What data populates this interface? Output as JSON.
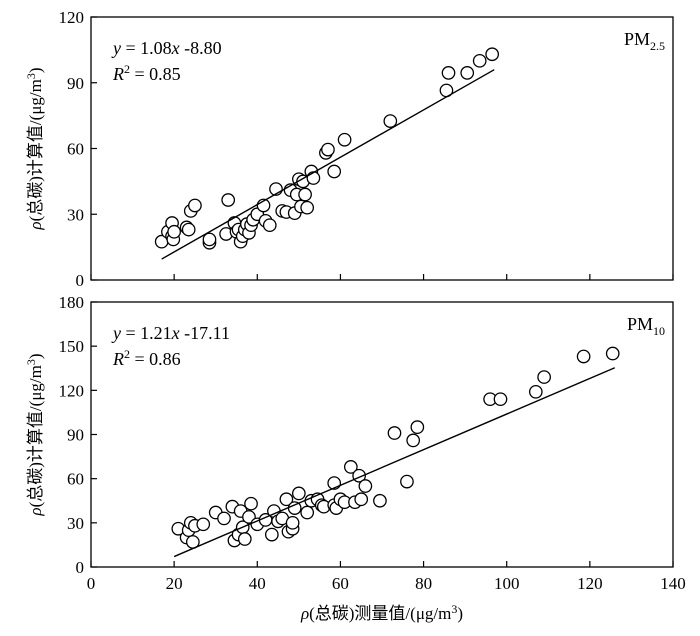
{
  "chart_data": [
    {
      "type": "scatter",
      "series_label": "PM",
      "series_label_sub": "2.5",
      "equation": {
        "y": "y",
        "eq": " = 1.08",
        "x": "x",
        "rest": " -8.80"
      },
      "r2": {
        "r": "R",
        "exp": "2",
        "rest": " = 0.85"
      },
      "fit": {
        "slope": 1.08,
        "intercept": -8.8,
        "x_range": [
          17,
          97
        ]
      },
      "xlim": [
        0,
        140
      ],
      "ylim": [
        0,
        120
      ],
      "yticks": [
        0,
        30,
        60,
        90,
        120
      ],
      "ylabel": {
        "rho": "ρ",
        "main": "(总碳)计算值/(μg/m",
        "sup": "3",
        "end": ")"
      },
      "points": [
        [
          17,
          17.5
        ],
        [
          18.5,
          22
        ],
        [
          19.5,
          26
        ],
        [
          19.5,
          20
        ],
        [
          19.8,
          18.5
        ],
        [
          20,
          22
        ],
        [
          23,
          24
        ],
        [
          23.5,
          23
        ],
        [
          24,
          31.5
        ],
        [
          25,
          34
        ],
        [
          28.5,
          17
        ],
        [
          28.5,
          18.5
        ],
        [
          32.5,
          21
        ],
        [
          33,
          36.5
        ],
        [
          34.5,
          26
        ],
        [
          35,
          22
        ],
        [
          35.5,
          23
        ],
        [
          36,
          17.5
        ],
        [
          36.5,
          20
        ],
        [
          37,
          23
        ],
        [
          37.5,
          25.5
        ],
        [
          38,
          21.5
        ],
        [
          38.5,
          25
        ],
        [
          39,
          27.5
        ],
        [
          40,
          30
        ],
        [
          41.5,
          34
        ],
        [
          42,
          27
        ],
        [
          43,
          25
        ],
        [
          44.5,
          41.5
        ],
        [
          46,
          31.5
        ],
        [
          47,
          31
        ],
        [
          48,
          41
        ],
        [
          49,
          30.5
        ],
        [
          49.5,
          39
        ],
        [
          50,
          46
        ],
        [
          50.5,
          33.5
        ],
        [
          51,
          45
        ],
        [
          51.5,
          39
        ],
        [
          52,
          33
        ],
        [
          53,
          49.5
        ],
        [
          53.5,
          46.5
        ],
        [
          56.5,
          58
        ],
        [
          57,
          59.5
        ],
        [
          58.5,
          49.5
        ],
        [
          61,
          64
        ],
        [
          72,
          72.5
        ],
        [
          85.5,
          86.5
        ],
        [
          86,
          94.5
        ],
        [
          90.5,
          94.5
        ],
        [
          93.5,
          100
        ],
        [
          96.5,
          103
        ]
      ]
    },
    {
      "type": "scatter",
      "series_label": "PM",
      "series_label_sub": "10",
      "equation": {
        "y": "y",
        "eq": " = 1.21",
        "x": "x",
        "rest": " -17.11"
      },
      "r2": {
        "r": "R",
        "exp": "2",
        "rest": " = 0.86"
      },
      "fit": {
        "slope": 1.21,
        "intercept": -17.11,
        "x_range": [
          20,
          126
        ]
      },
      "xlim": [
        0,
        140
      ],
      "ylim": [
        0,
        180
      ],
      "xticks": [
        0,
        20,
        40,
        60,
        80,
        100,
        120,
        140
      ],
      "yticks": [
        0,
        30,
        60,
        90,
        120,
        150,
        180
      ],
      "xlabel": {
        "rho": "ρ",
        "main": "(总碳)测量值/(μg/m",
        "sup": "3",
        "end": ")"
      },
      "ylabel": {
        "rho": "ρ",
        "main": "(总碳)计算值/(μg/m",
        "sup": "3",
        "end": ")"
      },
      "points": [
        [
          21,
          26
        ],
        [
          23,
          20
        ],
        [
          23.5,
          25
        ],
        [
          24,
          30
        ],
        [
          24.5,
          17
        ],
        [
          25,
          28
        ],
        [
          27,
          29
        ],
        [
          30,
          37
        ],
        [
          32,
          33
        ],
        [
          34,
          41
        ],
        [
          34.5,
          18
        ],
        [
          35.5,
          22
        ],
        [
          36,
          38
        ],
        [
          36.5,
          27
        ],
        [
          37,
          19
        ],
        [
          38,
          34
        ],
        [
          38.5,
          43
        ],
        [
          40,
          29
        ],
        [
          42,
          32
        ],
        [
          43.5,
          22
        ],
        [
          44,
          38
        ],
        [
          45,
          31
        ],
        [
          46,
          33
        ],
        [
          47,
          46
        ],
        [
          47.5,
          24
        ],
        [
          48.5,
          26
        ],
        [
          48.5,
          30
        ],
        [
          49,
          40
        ],
        [
          50,
          50
        ],
        [
          52,
          37
        ],
        [
          53,
          45
        ],
        [
          54.5,
          46
        ],
        [
          55.5,
          42
        ],
        [
          56,
          41
        ],
        [
          58.5,
          57
        ],
        [
          58.5,
          42
        ],
        [
          59,
          40
        ],
        [
          60,
          46
        ],
        [
          61,
          44
        ],
        [
          62.5,
          68
        ],
        [
          63.5,
          44
        ],
        [
          64.5,
          62
        ],
        [
          65,
          46
        ],
        [
          66,
          55
        ],
        [
          69.5,
          45
        ],
        [
          73,
          91
        ],
        [
          76,
          58
        ],
        [
          77.5,
          86
        ],
        [
          78.5,
          95
        ],
        [
          96,
          114
        ],
        [
          98.5,
          114
        ],
        [
          107,
          119
        ],
        [
          109,
          129
        ],
        [
          118.5,
          143
        ],
        [
          125.5,
          145
        ]
      ]
    }
  ]
}
